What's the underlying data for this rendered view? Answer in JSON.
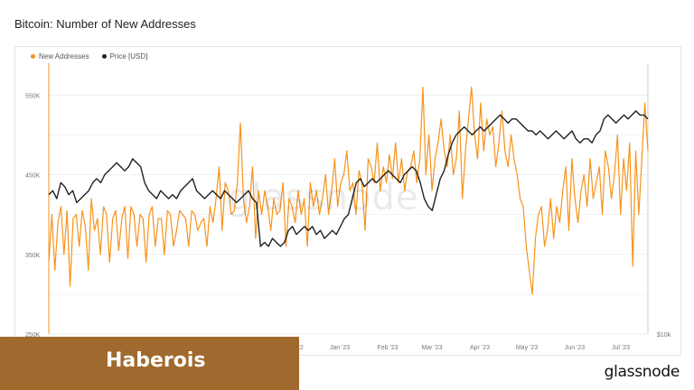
{
  "title": "Bitcoin: Number of New Addresses",
  "watermark": "glassnode",
  "banner": "Haberois",
  "brand": "glassnode",
  "colors": {
    "new_addresses": "#f7931a",
    "price": "#222222",
    "banner": "#a06a2e"
  },
  "chart_data": {
    "type": "line",
    "legend": [
      "New Addresses",
      "Price [USD]"
    ],
    "x_ticks": [
      "Dec '22",
      "Jan '23",
      "Feb '23",
      "Mar '23",
      "Apr '23",
      "May '23",
      "Jun '23",
      "Jul '23"
    ],
    "y_ticks_left": [
      "250K",
      "350K",
      "450K",
      "550K"
    ],
    "y_ticks_right": [
      "$10k"
    ],
    "ylim_left": [
      250000,
      590000
    ],
    "grid": true,
    "series": [
      {
        "name": "New Addresses",
        "axis": "left",
        "values": [
          340000,
          400000,
          330000,
          390000,
          410000,
          350000,
          405000,
          310000,
          395000,
          400000,
          360000,
          405000,
          385000,
          330000,
          420000,
          380000,
          395000,
          350000,
          410000,
          400000,
          340000,
          395000,
          405000,
          355000,
          395000,
          410000,
          345000,
          410000,
          400000,
          360000,
          400000,
          395000,
          340000,
          400000,
          410000,
          360000,
          395000,
          395000,
          350000,
          405000,
          400000,
          360000,
          380000,
          405000,
          400000,
          395000,
          360000,
          405000,
          400000,
          380000,
          390000,
          395000,
          360000,
          410000,
          390000,
          420000,
          460000,
          380000,
          440000,
          430000,
          400000,
          405000,
          440000,
          515000,
          420000,
          390000,
          410000,
          460000,
          370000,
          430000,
          400000,
          430000,
          410000,
          380000,
          420000,
          400000,
          405000,
          440000,
          360000,
          420000,
          410000,
          390000,
          430000,
          400000,
          420000,
          360000,
          440000,
          410000,
          430000,
          400000,
          420000,
          450000,
          400000,
          430000,
          470000,
          410000,
          440000,
          450000,
          480000,
          430000,
          440000,
          400000,
          455000,
          440000,
          380000,
          470000,
          460000,
          440000,
          490000,
          430000,
          460000,
          440000,
          475000,
          445000,
          490000,
          440000,
          470000,
          430000,
          455000,
          460000,
          480000,
          440000,
          470000,
          560000,
          450000,
          500000,
          430000,
          470000,
          490000,
          520000,
          480000,
          460000,
          500000,
          450000,
          470000,
          530000,
          420000,
          480000,
          520000,
          560000,
          500000,
          470000,
          540000,
          480000,
          520000,
          500000,
          510000,
          460000,
          490000,
          530000,
          480000,
          460000,
          500000,
          470000,
          450000,
          420000,
          410000,
          360000,
          330000,
          300000,
          370000,
          400000,
          410000,
          360000,
          380000,
          420000,
          370000,
          410000,
          390000,
          430000,
          460000,
          380000,
          470000,
          420000,
          390000,
          430000,
          450000,
          410000,
          470000,
          420000,
          440000,
          460000,
          400000,
          480000,
          460000,
          420000,
          450000,
          500000,
          400000,
          470000,
          430000,
          490000,
          335000,
          480000,
          400000,
          470000,
          540000,
          480000
        ],
        "render_note": "approximate daily values"
      },
      {
        "name": "Price [USD]",
        "axis": "left",
        "values": [
          425000,
          430000,
          420000,
          440000,
          435000,
          425000,
          430000,
          415000,
          420000,
          425000,
          430000,
          440000,
          445000,
          440000,
          450000,
          455000,
          460000,
          465000,
          460000,
          455000,
          460000,
          470000,
          465000,
          460000,
          440000,
          430000,
          425000,
          420000,
          430000,
          425000,
          420000,
          425000,
          420000,
          430000,
          435000,
          440000,
          445000,
          430000,
          425000,
          420000,
          425000,
          430000,
          425000,
          420000,
          430000,
          425000,
          420000,
          415000,
          420000,
          425000,
          430000,
          420000,
          415000,
          360000,
          365000,
          360000,
          370000,
          365000,
          360000,
          365000,
          380000,
          385000,
          375000,
          380000,
          385000,
          380000,
          385000,
          375000,
          380000,
          370000,
          375000,
          380000,
          375000,
          385000,
          395000,
          400000,
          420000,
          440000,
          445000,
          435000,
          440000,
          445000,
          440000,
          445000,
          450000,
          455000,
          450000,
          445000,
          440000,
          450000,
          455000,
          460000,
          455000,
          440000,
          420000,
          410000,
          405000,
          425000,
          445000,
          455000,
          475000,
          490000,
          500000,
          505000,
          510000,
          505000,
          500000,
          505000,
          510000,
          505000,
          510000,
          515000,
          520000,
          525000,
          520000,
          515000,
          520000,
          520000,
          515000,
          510000,
          505000,
          505000,
          500000,
          505000,
          500000,
          495000,
          500000,
          505000,
          500000,
          495000,
          500000,
          505000,
          495000,
          490000,
          495000,
          495000,
          490000,
          500000,
          505000,
          520000,
          525000,
          520000,
          515000,
          520000,
          525000,
          520000,
          525000,
          530000,
          525000,
          525000,
          520000
        ],
        "render_note": "approximate price trace in left-axis units for overlay"
      }
    ]
  }
}
